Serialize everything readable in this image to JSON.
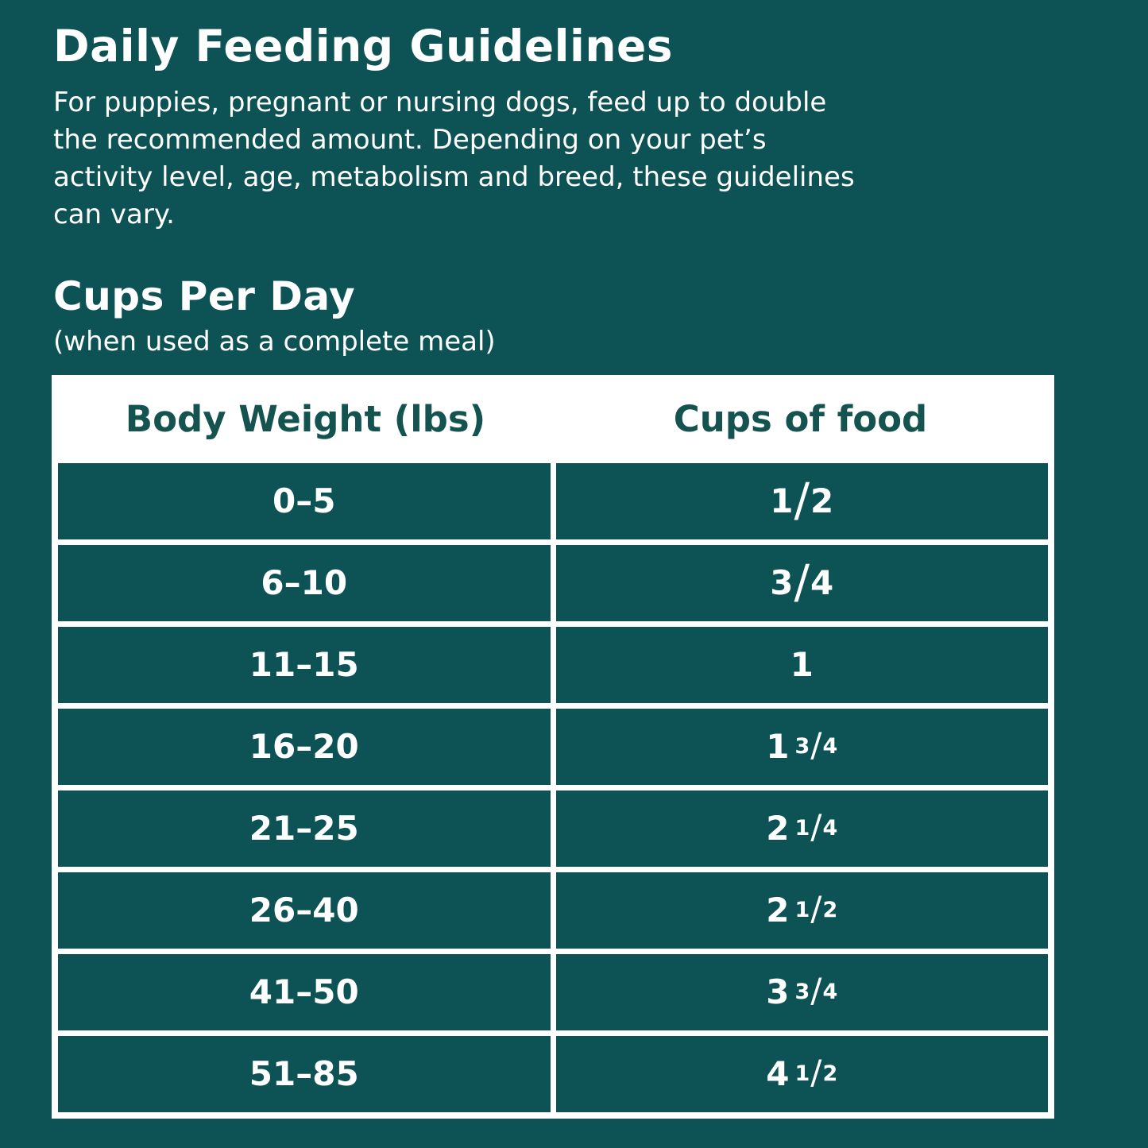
{
  "page": {
    "title": "Daily Feeding Guidelines",
    "intro": "For puppies, pregnant or nursing dogs, feed up to double\nthe recommended amount. Depending on your pet’s\nactivity level, age, metabolism and breed, these guidelines\ncan vary.",
    "section_title": "Cups Per Day",
    "section_subtitle": "(when used as a complete meal)"
  },
  "colors": {
    "background_teal": "#0D5254",
    "header_text_teal": "#14534F",
    "text_white": "#FFFFFF"
  },
  "table": {
    "headers": [
      "Body Weight (lbs)",
      "Cups of food"
    ],
    "rows": [
      {
        "weight": "0–5",
        "cups_whole": "",
        "cups_fraction": "1/2"
      },
      {
        "weight": "6–10",
        "cups_whole": "",
        "cups_fraction": "3/4"
      },
      {
        "weight": "11–15",
        "cups_whole": "1",
        "cups_fraction": ""
      },
      {
        "weight": "16–20",
        "cups_whole": "1",
        "cups_fraction": "3/4"
      },
      {
        "weight": "21–25",
        "cups_whole": "2",
        "cups_fraction": "1/4"
      },
      {
        "weight": "26–40",
        "cups_whole": "2",
        "cups_fraction": "1/2"
      },
      {
        "weight": "41–50",
        "cups_whole": "3",
        "cups_fraction": "3/4"
      },
      {
        "weight": "51–85",
        "cups_whole": "4",
        "cups_fraction": "1/2"
      }
    ]
  }
}
